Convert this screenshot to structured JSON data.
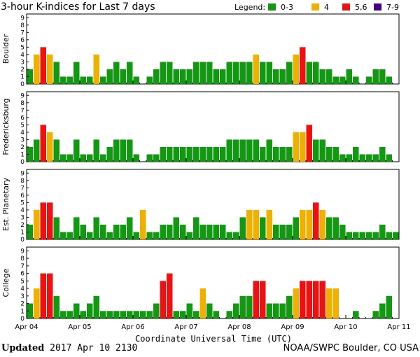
{
  "chart_title": "3-hour K-indices for Last 7 days",
  "legend": {
    "label": "Legend:",
    "items": [
      {
        "label": "0-3",
        "color": "#119911"
      },
      {
        "label": "4",
        "color": "#f0b000"
      },
      {
        "label": "5,6",
        "color": "#ee1111"
      },
      {
        "label": "7-9",
        "color": "#440088"
      }
    ]
  },
  "x_axis": {
    "title": "Coordinate Universal Time (UTC)",
    "date_labels": [
      "Apr 04",
      "Apr 05",
      "Apr 06",
      "Apr 07",
      "Apr 08",
      "Apr 09",
      "Apr 10",
      "Apr 11"
    ]
  },
  "footer": {
    "updated_label": "Updated",
    "updated_value": "2017 Apr 10 2130",
    "source": "NOAA/SWPC Boulder, CO USA"
  },
  "chart_data": {
    "type": "bar",
    "title": "3-hour K-indices for Last 7 days",
    "xlabel": "Coordinate Universal Time (UTC)",
    "x_start": "2017-04-04 00:00 UTC",
    "x_end": "2017-04-11 00:00 UTC",
    "bar_interval_hours": 3,
    "ylim": [
      0,
      9
    ],
    "y_ticks": [
      0,
      1,
      2,
      3,
      4,
      5,
      6,
      7,
      8,
      9
    ],
    "color_scale": {
      "0-3": "#119911",
      "4": "#f0b000",
      "5,6": "#ee1111",
      "7-9": "#440088"
    },
    "panels": [
      {
        "name": "Boulder",
        "values": [
          2,
          4,
          5,
          4,
          3,
          1,
          1,
          3,
          1,
          1,
          4,
          1,
          2,
          3,
          2,
          3,
          1,
          0,
          1,
          2,
          3,
          3,
          2,
          2,
          2,
          3,
          3,
          3,
          2,
          2,
          3,
          3,
          3,
          3,
          4,
          3,
          3,
          2,
          2,
          3,
          4,
          5,
          3,
          3,
          2,
          2,
          1,
          1,
          2,
          1,
          0,
          1,
          2,
          2,
          1,
          0
        ]
      },
      {
        "name": "Fredericksburg",
        "values": [
          2,
          3,
          5,
          4,
          3,
          1,
          1,
          3,
          1,
          1,
          3,
          1,
          2,
          3,
          3,
          3,
          1,
          0,
          1,
          1,
          2,
          2,
          2,
          2,
          2,
          2,
          2,
          2,
          2,
          2,
          3,
          3,
          3,
          3,
          3,
          2,
          3,
          2,
          2,
          2,
          4,
          4,
          5,
          3,
          3,
          2,
          2,
          1,
          1,
          2,
          1,
          1,
          1,
          2,
          1,
          0
        ]
      },
      {
        "name": "Est. Planetary",
        "values": [
          2,
          4,
          5,
          5,
          3,
          1,
          1,
          3,
          2,
          1,
          3,
          2,
          1,
          2,
          2,
          3,
          1,
          4,
          1,
          1,
          2,
          2,
          3,
          2,
          1,
          3,
          2,
          2,
          2,
          2,
          1,
          1,
          3,
          4,
          4,
          3,
          4,
          2,
          2,
          2,
          3,
          4,
          4,
          5,
          4,
          3,
          3,
          2,
          1,
          1,
          1,
          1,
          1,
          2,
          1,
          1
        ]
      },
      {
        "name": "College",
        "values": [
          2,
          4,
          6,
          6,
          3,
          1,
          1,
          2,
          1,
          2,
          3,
          1,
          1,
          1,
          1,
          1,
          1,
          1,
          1,
          2,
          5,
          6,
          1,
          1,
          2,
          1,
          4,
          2,
          1,
          0,
          1,
          2,
          3,
          3,
          5,
          5,
          2,
          2,
          2,
          3,
          4,
          5,
          5,
          5,
          5,
          4,
          4,
          0,
          0,
          1,
          0,
          0,
          1,
          2,
          3,
          0
        ]
      }
    ]
  }
}
